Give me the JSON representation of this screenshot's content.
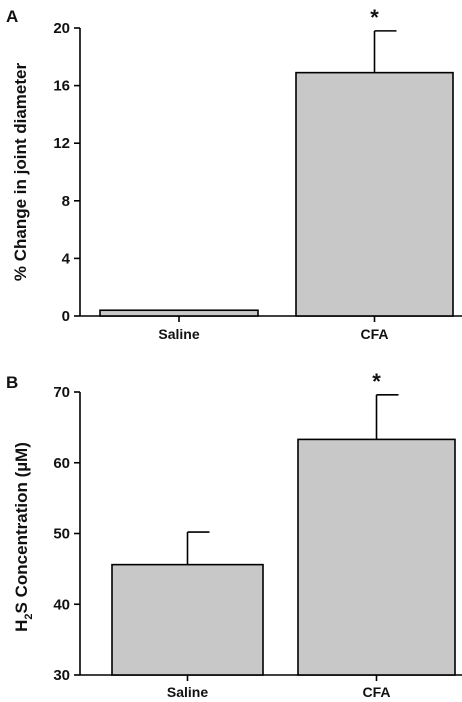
{
  "chart_data": [
    {
      "panel": "A",
      "type": "bar",
      "categories": [
        "Saline",
        "CFA"
      ],
      "values": [
        0.4,
        16.9
      ],
      "errors": [
        0,
        2.9
      ],
      "annotations": [
        "",
        "*"
      ],
      "ylabel": "% Change in joint diameter",
      "ylim": [
        0,
        20
      ],
      "yticks": [
        "0",
        "4",
        "8",
        "12",
        "16",
        "20"
      ],
      "bar_color": "#c8c8c8",
      "grid": false
    },
    {
      "panel": "B",
      "type": "bar",
      "categories": [
        "Saline",
        "CFA"
      ],
      "values": [
        45.6,
        63.3
      ],
      "errors": [
        4.6,
        6.3
      ],
      "annotations": [
        "",
        "*"
      ],
      "ylabel": {
        "pre": "H",
        "sub": "2",
        "post": "S Concentration (µM)"
      },
      "ylim": [
        30,
        70
      ],
      "yticks": [
        "30",
        "40",
        "50",
        "60",
        "70"
      ],
      "bar_color": "#c8c8c8",
      "grid": false
    }
  ]
}
